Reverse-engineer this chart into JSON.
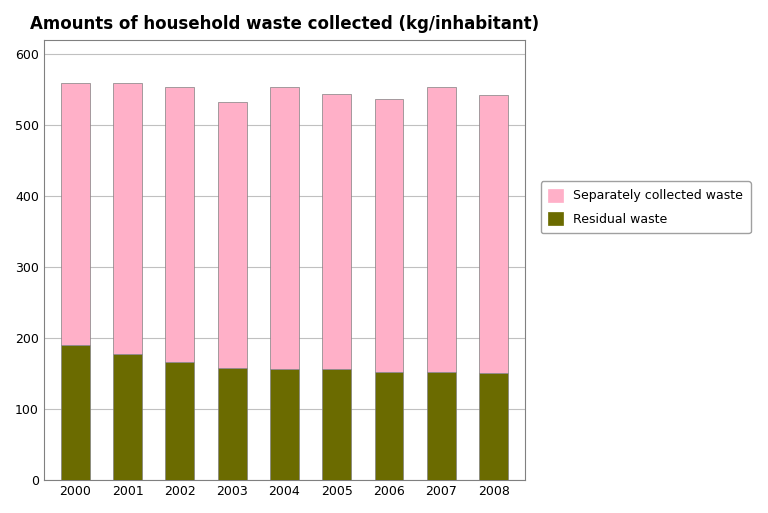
{
  "years": [
    2000,
    2001,
    2002,
    2003,
    2004,
    2005,
    2006,
    2007,
    2008
  ],
  "residual_waste": [
    191,
    178,
    166,
    158,
    157,
    156,
    152,
    153,
    151
  ],
  "total": [
    560,
    560,
    554,
    533,
    554,
    544,
    537,
    554,
    543
  ],
  "residual_color": "#6b6b00",
  "separate_color": "#ffb0c8",
  "title": "Amounts of household waste collected (kg/inhabitant)",
  "ylim": [
    0,
    620
  ],
  "yticks": [
    0,
    100,
    200,
    300,
    400,
    500,
    600
  ],
  "legend_separate": "Separately collected waste",
  "legend_residual": "Residual waste",
  "bar_width": 0.55,
  "title_fontsize": 12,
  "legend_fontsize": 9,
  "tick_fontsize": 9,
  "grid_color": "#c0c0c0",
  "spine_color": "#808080",
  "bar_edge_color": "#808080"
}
